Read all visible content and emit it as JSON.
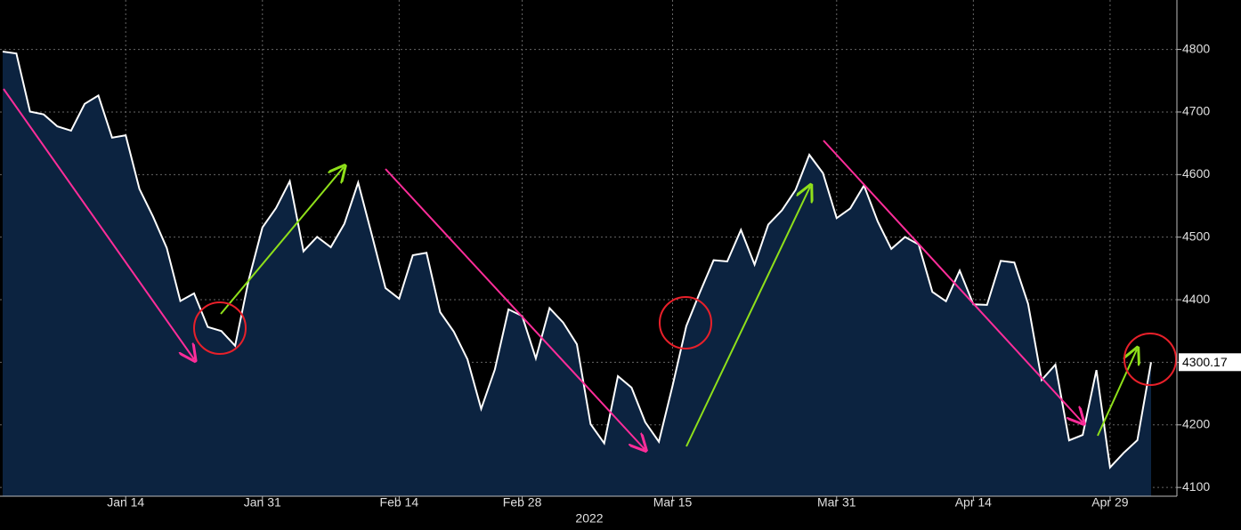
{
  "chart_data": {
    "type": "area",
    "x": [
      "2022-01-03",
      "2022-01-04",
      "2022-01-05",
      "2022-01-06",
      "2022-01-07",
      "2022-01-10",
      "2022-01-11",
      "2022-01-12",
      "2022-01-13",
      "2022-01-14",
      "2022-01-18",
      "2022-01-19",
      "2022-01-20",
      "2022-01-21",
      "2022-01-24",
      "2022-01-25",
      "2022-01-26",
      "2022-01-27",
      "2022-01-28",
      "2022-01-31",
      "2022-02-01",
      "2022-02-02",
      "2022-02-03",
      "2022-02-04",
      "2022-02-07",
      "2022-02-08",
      "2022-02-09",
      "2022-02-10",
      "2022-02-11",
      "2022-02-14",
      "2022-02-15",
      "2022-02-16",
      "2022-02-17",
      "2022-02-18",
      "2022-02-22",
      "2022-02-23",
      "2022-02-24",
      "2022-02-25",
      "2022-02-28",
      "2022-03-01",
      "2022-03-02",
      "2022-03-03",
      "2022-03-04",
      "2022-03-07",
      "2022-03-08",
      "2022-03-09",
      "2022-03-10",
      "2022-03-11",
      "2022-03-14",
      "2022-03-15",
      "2022-03-16",
      "2022-03-17",
      "2022-03-18",
      "2022-03-21",
      "2022-03-22",
      "2022-03-23",
      "2022-03-24",
      "2022-03-25",
      "2022-03-28",
      "2022-03-29",
      "2022-03-30",
      "2022-03-31",
      "2022-04-01",
      "2022-04-04",
      "2022-04-05",
      "2022-04-06",
      "2022-04-07",
      "2022-04-08",
      "2022-04-11",
      "2022-04-12",
      "2022-04-13",
      "2022-04-14",
      "2022-04-18",
      "2022-04-19",
      "2022-04-20",
      "2022-04-21",
      "2022-04-22",
      "2022-04-25",
      "2022-04-26",
      "2022-04-27",
      "2022-04-28",
      "2022-04-29",
      "2022-05-02",
      "2022-05-03",
      "2022-05-04"
    ],
    "values": [
      4796.56,
      4793.54,
      4700.58,
      4696.05,
      4677.03,
      4670.29,
      4713.07,
      4726.35,
      4659.03,
      4662.85,
      4577.11,
      4532.76,
      4482.73,
      4397.94,
      4410.13,
      4356.45,
      4349.93,
      4326.51,
      4431.85,
      4515.55,
      4546.54,
      4589.38,
      4477.44,
      4500.53,
      4483.87,
      4521.54,
      4587.18,
      4504.08,
      4418.64,
      4401.67,
      4471.07,
      4475.01,
      4380.26,
      4348.87,
      4304.76,
      4225.5,
      4288.7,
      4384.65,
      4373.94,
      4306.26,
      4386.54,
      4363.49,
      4328.87,
      4201.09,
      4170.7,
      4277.88,
      4259.52,
      4204.31,
      4173.11,
      4262.45,
      4357.86,
      4411.67,
      4463.12,
      4461.18,
      4511.61,
      4456.24,
      4520.16,
      4543.06,
      4575.52,
      4631.6,
      4602.45,
      4530.41,
      4545.86,
      4582.64,
      4525.12,
      4481.15,
      4500.21,
      4488.28,
      4412.53,
      4397.45,
      4446.59,
      4392.59,
      4391.69,
      4462.21,
      4459.45,
      4393.66,
      4271.78,
      4296.12,
      4175.2,
      4183.96,
      4287.5,
      4131.93,
      4155.38,
      4175.48,
      4300.17
    ],
    "color": "#ffffff",
    "fill": "#0c2340",
    "xticks": [
      {
        "value": "2022-01-14",
        "label": "Jan 14"
      },
      {
        "value": "2022-01-31",
        "label": "Jan 31"
      },
      {
        "value": "2022-02-14",
        "label": "Feb 14"
      },
      {
        "value": "2022-02-28",
        "label": "Feb 28"
      },
      {
        "value": "2022-03-15",
        "label": "Mar 15"
      },
      {
        "value": "2022-03-31",
        "label": "Mar 31"
      },
      {
        "value": "2022-04-14",
        "label": "Apr 14"
      },
      {
        "value": "2022-04-29",
        "label": "Apr 29"
      }
    ],
    "x_label": "2022",
    "ylim": [
      4086,
      4879
    ],
    "yticks": [
      4100,
      4200,
      4300,
      4400,
      4500,
      4600,
      4700,
      4800
    ],
    "grid": true
  }
}
